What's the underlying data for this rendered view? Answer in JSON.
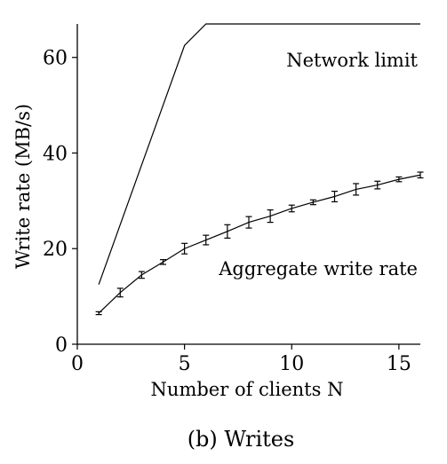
{
  "chart_data": {
    "type": "line",
    "xlabel": "Number of clients N",
    "ylabel": "Write rate (MB/s)",
    "caption": "(b) Writes",
    "xlim": [
      0,
      16
    ],
    "ylim": [
      0,
      67
    ],
    "xticks": [
      0,
      5,
      10,
      15
    ],
    "yticks": [
      0,
      20,
      40,
      60
    ],
    "grid": false,
    "legend": "none",
    "series": [
      {
        "name": "Network limit",
        "x": [
          1,
          5,
          6,
          16
        ],
        "y": [
          12.5,
          62.5,
          67,
          67
        ],
        "errors": []
      },
      {
        "name": "Aggregate write rate",
        "x": [
          1,
          2,
          3,
          4,
          5,
          6,
          7,
          8,
          9,
          10,
          11,
          12,
          13,
          14,
          15,
          16
        ],
        "y": [
          6.5,
          10.8,
          14.5,
          17.2,
          20.0,
          21.8,
          23.6,
          25.5,
          26.8,
          28.4,
          29.7,
          30.9,
          32.4,
          33.3,
          34.5,
          35.4
        ],
        "errors": [
          0.3,
          0.9,
          0.7,
          0.5,
          1.1,
          1.0,
          1.4,
          1.2,
          1.3,
          0.7,
          0.5,
          1.1,
          1.2,
          0.8,
          0.5,
          0.6
        ]
      }
    ]
  }
}
